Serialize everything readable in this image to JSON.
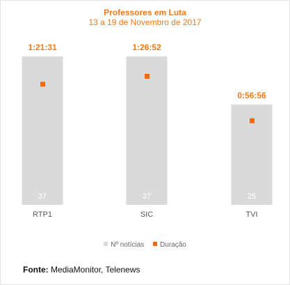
{
  "header": {
    "title": "Professores em Luta",
    "subtitle": "13 a 19 de Novembro de 2017"
  },
  "colors": {
    "bar": "#dadada",
    "marker": "#f26a10",
    "duration_label": "#f07a1a",
    "bar_label": "#ffffff",
    "category_label": "#555555"
  },
  "chart_data": {
    "type": "bar",
    "categories": [
      "RTP1",
      "SIC",
      "TVI"
    ],
    "series": [
      {
        "name": "Nº notícias",
        "type": "bar",
        "values": [
          37,
          37,
          25
        ]
      },
      {
        "name": "Duração",
        "type": "scatter",
        "values": [
          "1:21:31",
          "1:26:52",
          "0:56:56"
        ],
        "seconds": [
          4891,
          5212,
          3416
        ]
      }
    ],
    "title": "Professores em Luta",
    "subtitle": "13 a 19 de Novembro de 2017",
    "bar_ylim": [
      0,
      37
    ],
    "duration_ylim_seconds": [
      0,
      6000
    ],
    "legend_position": "bottom",
    "grid": false
  },
  "legend": {
    "bar_label": "Nº notícias",
    "marker_label": "Duração"
  },
  "source": {
    "label": "Fonte:",
    "text": "MediaMonitor, Telenews"
  }
}
